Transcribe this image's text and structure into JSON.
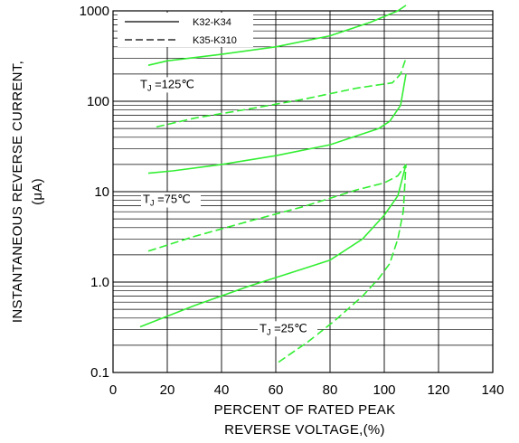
{
  "chart_data": {
    "type": "line",
    "xlabel_lines": [
      "PERCENT OF RATED PEAK",
      "REVERSE VOLTAGE,(%)"
    ],
    "ylabel_lines": [
      "INSTANTANEOUS REVERSE CURRENT,",
      "(μA)"
    ],
    "x_ticks": [
      "0",
      "20",
      "40",
      "60",
      "80",
      "100",
      "120",
      "140"
    ],
    "y_ticks": [
      "0.1",
      "1.0",
      "10",
      "100",
      "1000"
    ],
    "xlim": [
      0,
      140
    ],
    "ylim": [
      0.1,
      1000
    ],
    "y_scale": "log",
    "grid": true,
    "legend": {
      "position": "top-left",
      "entries": [
        {
          "label": "K32-K34",
          "style": "solid"
        },
        {
          "label": "K35-K310",
          "style": "dashed"
        }
      ]
    },
    "annotations": [
      {
        "main": "T",
        "sub": "J",
        "rest": " =125℃",
        "x": 10,
        "y": 140
      },
      {
        "main": "T",
        "sub": "J",
        "rest": " =75℃",
        "x": 11,
        "y": 7.5
      },
      {
        "main": "T",
        "sub": "J",
        "rest": " =25℃",
        "x": 54,
        "y": 0.28
      }
    ],
    "line_color": "#33ee33",
    "series": [
      {
        "style": "solid",
        "points": [
          [
            13,
            250
          ],
          [
            20,
            280
          ],
          [
            40,
            330
          ],
          [
            60,
            400
          ],
          [
            80,
            530
          ],
          [
            95,
            750
          ],
          [
            105,
            1000
          ],
          [
            108,
            1150
          ]
        ]
      },
      {
        "style": "dashed",
        "points": [
          [
            16,
            52
          ],
          [
            30,
            65
          ],
          [
            50,
            82
          ],
          [
            70,
            105
          ],
          [
            90,
            140
          ],
          [
            103,
            160
          ],
          [
            106,
            200
          ],
          [
            108,
            300
          ]
        ]
      },
      {
        "style": "solid",
        "points": [
          [
            13,
            16
          ],
          [
            22,
            17
          ],
          [
            40,
            20
          ],
          [
            60,
            25
          ],
          [
            80,
            33
          ],
          [
            98,
            50
          ],
          [
            102,
            60
          ],
          [
            106,
            90
          ],
          [
            108,
            200
          ]
        ]
      },
      {
        "style": "dashed",
        "points": [
          [
            13,
            2.2
          ],
          [
            30,
            3.2
          ],
          [
            50,
            4.7
          ],
          [
            70,
            6.8
          ],
          [
            90,
            10.5
          ],
          [
            100,
            12.5
          ],
          [
            105,
            15
          ],
          [
            108,
            20
          ]
        ]
      },
      {
        "style": "solid",
        "points": [
          [
            10,
            0.32
          ],
          [
            30,
            0.55
          ],
          [
            50,
            0.9
          ],
          [
            65,
            1.25
          ],
          [
            80,
            1.75
          ],
          [
            92,
            3
          ],
          [
            100,
            5.5
          ],
          [
            105,
            9
          ],
          [
            108,
            20
          ]
        ]
      },
      {
        "style": "dashed",
        "points": [
          [
            61,
            0.13
          ],
          [
            72,
            0.22
          ],
          [
            82,
            0.38
          ],
          [
            92,
            0.7
          ],
          [
            98,
            1.1
          ],
          [
            102,
            1.6
          ],
          [
            105,
            3
          ],
          [
            107,
            6
          ],
          [
            108,
            20
          ]
        ]
      }
    ]
  }
}
